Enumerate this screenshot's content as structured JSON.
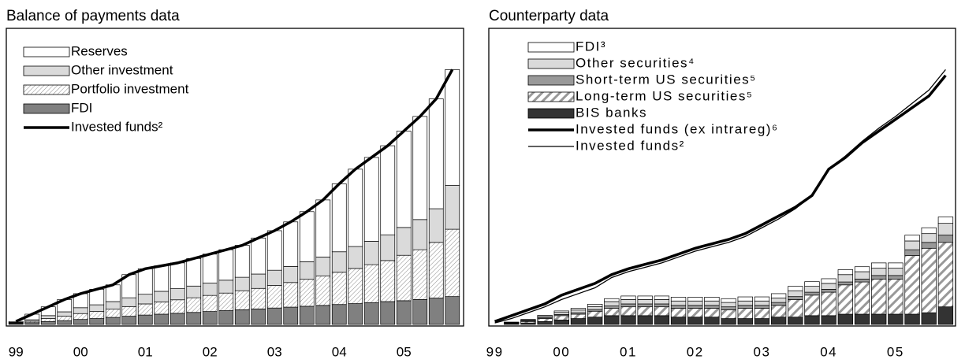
{
  "chart_data": [
    {
      "type": "bar",
      "stacked": true,
      "title": "Balance of payments data",
      "categories": [
        "99",
        null,
        null,
        null,
        "00",
        null,
        null,
        null,
        "01",
        null,
        null,
        null,
        "02",
        null,
        null,
        null,
        "03",
        null,
        null,
        null,
        "04",
        null,
        null,
        null,
        "05",
        null,
        null,
        null
      ],
      "ylim": [
        0,
        100
      ],
      "legend": "upper left",
      "series": [
        {
          "name": "FDI",
          "color": "#808080",
          "values": [
            0.3,
            0.6,
            1,
            1.3,
            1.7,
            2,
            2.4,
            2.8,
            3.2,
            3.5,
            3.8,
            4.1,
            4.4,
            4.7,
            5,
            5.3,
            5.6,
            5.9,
            6.2,
            6.5,
            6.8,
            7.1,
            7.4,
            7.8,
            8.1,
            8.5,
            9,
            9.5
          ]
        },
        {
          "name": "Portfolio investment",
          "color": "#ffffff",
          "pattern": "fine",
          "values": [
            0.2,
            0.5,
            1,
            1.5,
            2,
            2.4,
            2.8,
            3.3,
            3.8,
            4.2,
            4.6,
            5,
            5.5,
            6,
            6.5,
            7,
            7.7,
            8.4,
            9.2,
            10,
            11,
            12,
            13,
            14,
            15.5,
            17,
            19,
            23
          ]
        },
        {
          "name": "Other investment",
          "color": "#dadada",
          "values": [
            0.2,
            0.5,
            1,
            1.5,
            2,
            2.3,
            2.6,
            3,
            3.3,
            3.6,
            3.8,
            4,
            4.2,
            4.4,
            4.6,
            4.9,
            5.2,
            5.5,
            6,
            6.5,
            7,
            7.5,
            8,
            8.8,
            9.5,
            10.3,
            11.5,
            15
          ]
        },
        {
          "name": "Reserves",
          "color": "#ffffff",
          "values": [
            0.3,
            1.9,
            3,
            4.2,
            4.8,
            5.3,
            5.7,
            7.9,
            8.7,
            8.7,
            8.8,
            9.4,
            9.9,
            10.4,
            10.9,
            12.3,
            13.5,
            15.2,
            17.1,
            19.5,
            23.2,
            26.4,
            28.6,
            30.4,
            32.9,
            35.2,
            37.5,
            39.5
          ]
        },
        {
          "name": "Invested funds²",
          "type": "line",
          "color": "#000000",
          "line_width": 3.5,
          "values": [
            1,
            3.5,
            6,
            8.5,
            10.5,
            12,
            13.5,
            17,
            19,
            20,
            21,
            22.5,
            24,
            25.5,
            27,
            29.5,
            32,
            35,
            38.5,
            42.5,
            48,
            53,
            57,
            61,
            66,
            71,
            77,
            87
          ]
        }
      ]
    },
    {
      "type": "bar",
      "stacked": true,
      "title": "Counterparty data",
      "categories": [
        "99",
        null,
        null,
        null,
        "00",
        null,
        null,
        null,
        "01",
        null,
        null,
        null,
        "02",
        null,
        null,
        null,
        "03",
        null,
        null,
        null,
        "04",
        null,
        null,
        null,
        "05",
        null,
        null,
        null
      ],
      "ylim": [
        0,
        100
      ],
      "legend": "upper left",
      "series": [
        {
          "name": "BIS banks",
          "color": "#333333",
          "values": [
            0,
            0.2,
            0.5,
            1,
            1.5,
            2,
            2.5,
            3,
            3,
            3,
            3,
            2.5,
            2.5,
            2.5,
            2,
            2,
            2,
            2.5,
            2.5,
            3,
            3,
            3.5,
            3.5,
            3.5,
            3.5,
            3.5,
            4,
            6
          ]
        },
        {
          "name": "Long-term US securities⁵",
          "color": "#ffffff",
          "pattern": "bold",
          "values": [
            0,
            0.2,
            0.5,
            1,
            1.5,
            1.5,
            2,
            2.5,
            3,
            3,
            3,
            3,
            3,
            3,
            3,
            3.5,
            3.5,
            4,
            6,
            7,
            8,
            10,
            11,
            12,
            12,
            20,
            22,
            22
          ]
        },
        {
          "name": "Short-term US securities⁵",
          "color": "#999999",
          "values": [
            0,
            0.1,
            0.2,
            0.3,
            0.4,
            0.5,
            0.6,
            0.8,
            1,
            1,
            1,
            1,
            1,
            1,
            1,
            1,
            1,
            1,
            1,
            1,
            1,
            1,
            1,
            1.2,
            1.2,
            2,
            2,
            2.5
          ]
        },
        {
          "name": "Other securities⁴",
          "color": "#dadada",
          "values": [
            0,
            0.2,
            0.3,
            0.5,
            0.7,
            0.9,
            1,
            1.5,
            1.5,
            1.5,
            1.5,
            1.5,
            1.5,
            1.5,
            1.5,
            1.5,
            1.5,
            1.5,
            2,
            2,
            2,
            2.5,
            2.5,
            2.5,
            2.5,
            3,
            3,
            4
          ]
        },
        {
          "name": "FDI³",
          "color": "#ffffff",
          "values": [
            0,
            0.1,
            0.2,
            0.3,
            0.5,
            0.6,
            0.8,
            1,
            1.2,
            1.2,
            1.2,
            1.3,
            1.3,
            1.3,
            1.3,
            1.4,
            1.4,
            1.5,
            1.5,
            1.6,
            1.6,
            1.7,
            1.7,
            1.8,
            1.8,
            2,
            2,
            2.2
          ]
        },
        {
          "name": "Invested funds (ex intrareg)⁶",
          "type": "line",
          "color": "#000000",
          "line_width": 3.5,
          "values": [
            1,
            3,
            5,
            7,
            10,
            12,
            14,
            17,
            19,
            20.5,
            22,
            24,
            26,
            27.5,
            29,
            31,
            34,
            37,
            40,
            44,
            53,
            57,
            62,
            66,
            70,
            74,
            78,
            85
          ]
        },
        {
          "name": "Invested funds²",
          "type": "line",
          "color": "#000000",
          "line_width": 1.3,
          "values": [
            0.5,
            2,
            4,
            6,
            8.5,
            10.5,
            12.5,
            16,
            18,
            19.5,
            21,
            23,
            25,
            26.5,
            28,
            30,
            33,
            36,
            39.5,
            44,
            53,
            57.5,
            62.5,
            67,
            71,
            75.5,
            80,
            87
          ]
        }
      ]
    }
  ]
}
